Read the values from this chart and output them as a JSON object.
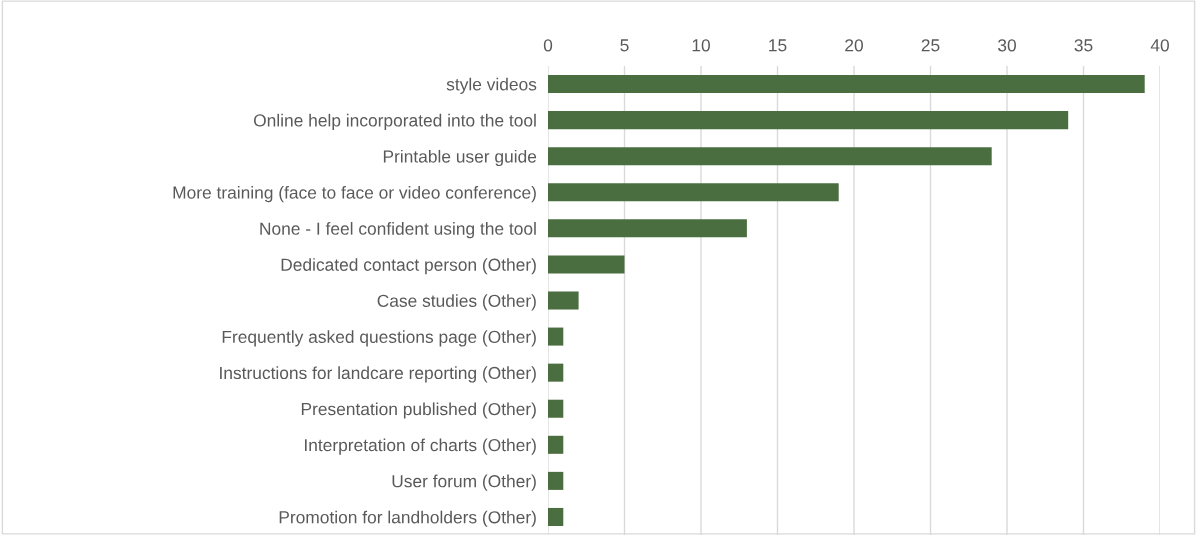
{
  "chart_data": {
    "type": "bar",
    "orientation": "horizontal",
    "categories": [
      "style videos",
      "Online help incorporated into the tool",
      "Printable user guide",
      "More training (face to face or video conference)",
      "None - I feel confident using the tool",
      "Dedicated contact person (Other)",
      "Case studies (Other)",
      "Frequently asked questions page (Other)",
      "Instructions for landcare reporting (Other)",
      "Presentation published (Other)",
      "Interpretation of charts (Other)",
      "User forum (Other)",
      "Promotion for landholders (Other)"
    ],
    "values": [
      39,
      34,
      29,
      19,
      13,
      5,
      2,
      1,
      1,
      1,
      1,
      1,
      1
    ],
    "color": "#4a6e3f",
    "xlim": [
      0,
      40
    ],
    "xticks": [
      0,
      5,
      10,
      15,
      20,
      25,
      30,
      35,
      40
    ],
    "grid": "x",
    "legend": false
  }
}
